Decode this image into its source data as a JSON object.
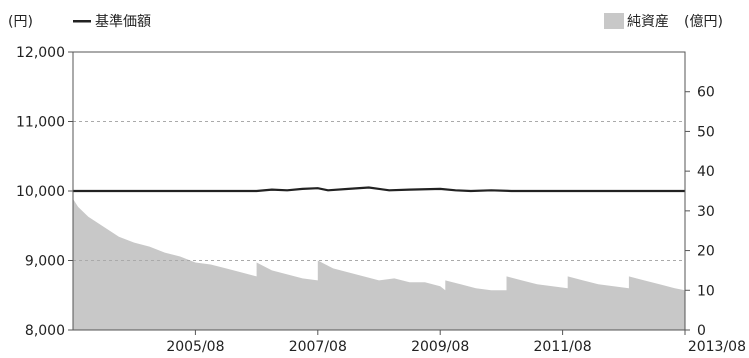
{
  "chart_data": {
    "type": "area",
    "left_axis_unit": "(円)",
    "right_axis_unit": "(億円)",
    "legend": {
      "line_label": "基準価額",
      "area_label": "純資産",
      "position": "top"
    },
    "x_tick_labels": [
      "2005/08",
      "2007/08",
      "2009/08",
      "2011/08",
      "2013/08"
    ],
    "x_range": [
      "2003/08",
      "2013/08"
    ],
    "y_left": {
      "range": [
        8000,
        12000
      ],
      "ticks": [
        "8,000",
        "9,000",
        "10,000",
        "11,000",
        "12,000"
      ],
      "tick_values": [
        8000,
        9000,
        10000,
        11000,
        12000
      ]
    },
    "y_right": {
      "range": [
        0,
        70
      ],
      "ticks": [
        "0",
        "10",
        "20",
        "30",
        "40",
        "50",
        "60"
      ],
      "tick_values": [
        0,
        10,
        20,
        30,
        40,
        50,
        60
      ]
    },
    "grid": "dashed horizontal at 9,000 and 11,000",
    "series": [
      {
        "name": "基準価額",
        "type": "line",
        "axis": "left",
        "color": "#222222",
        "x": [
          "2003/08",
          "2004/02",
          "2004/08",
          "2005/02",
          "2005/08",
          "2006/02",
          "2006/08",
          "2006/11",
          "2007/02",
          "2007/05",
          "2007/08",
          "2007/10",
          "2008/02",
          "2008/06",
          "2008/10",
          "2009/02",
          "2009/08",
          "2009/11",
          "2010/02",
          "2010/06",
          "2010/10",
          "2011/02",
          "2011/08",
          "2012/02",
          "2012/08",
          "2013/02",
          "2013/08"
        ],
        "values": [
          10000,
          10000,
          10000,
          10000,
          10000,
          10000,
          10000,
          10020,
          10010,
          10030,
          10040,
          10010,
          10030,
          10050,
          10010,
          10020,
          10030,
          10010,
          10000,
          10010,
          10000,
          10000,
          10000,
          10000,
          10000,
          10000,
          10000
        ]
      },
      {
        "name": "純資産",
        "type": "area",
        "axis": "right",
        "color": "#c8c8c8",
        "x": [
          "2003/08",
          "2003/09",
          "2003/11",
          "2004/02",
          "2004/05",
          "2004/08",
          "2004/11",
          "2005/02",
          "2005/05",
          "2005/08",
          "2005/11",
          "2006/02",
          "2006/05",
          "2006/08",
          "2006/08",
          "2006/11",
          "2007/02",
          "2007/05",
          "2007/08",
          "2007/08",
          "2007/11",
          "2008/02",
          "2008/05",
          "2008/08",
          "2008/11",
          "2009/02",
          "2009/05",
          "2009/08",
          "2009/09",
          "2009/09",
          "2009/12",
          "2010/03",
          "2010/06",
          "2010/09",
          "2010/09",
          "2010/12",
          "2011/03",
          "2011/06",
          "2011/09",
          "2011/09",
          "2011/12",
          "2012/03",
          "2012/06",
          "2012/09",
          "2012/09",
          "2012/12",
          "2013/03",
          "2013/06",
          "2013/08"
        ],
        "values": [
          33,
          31,
          28.5,
          26,
          23.5,
          22,
          21,
          19.5,
          18.5,
          17,
          16.5,
          15.5,
          14.5,
          13.5,
          17,
          15,
          14,
          13,
          12.5,
          17.5,
          15.5,
          14.5,
          13.5,
          12.5,
          13,
          12,
          12,
          11,
          10,
          12.5,
          11.5,
          10.5,
          10,
          10,
          13.5,
          12.5,
          11.5,
          11,
          10.5,
          13.5,
          12.5,
          11.5,
          11,
          10.5,
          13.5,
          12.5,
          11.5,
          10.5,
          10
        ]
      }
    ]
  }
}
